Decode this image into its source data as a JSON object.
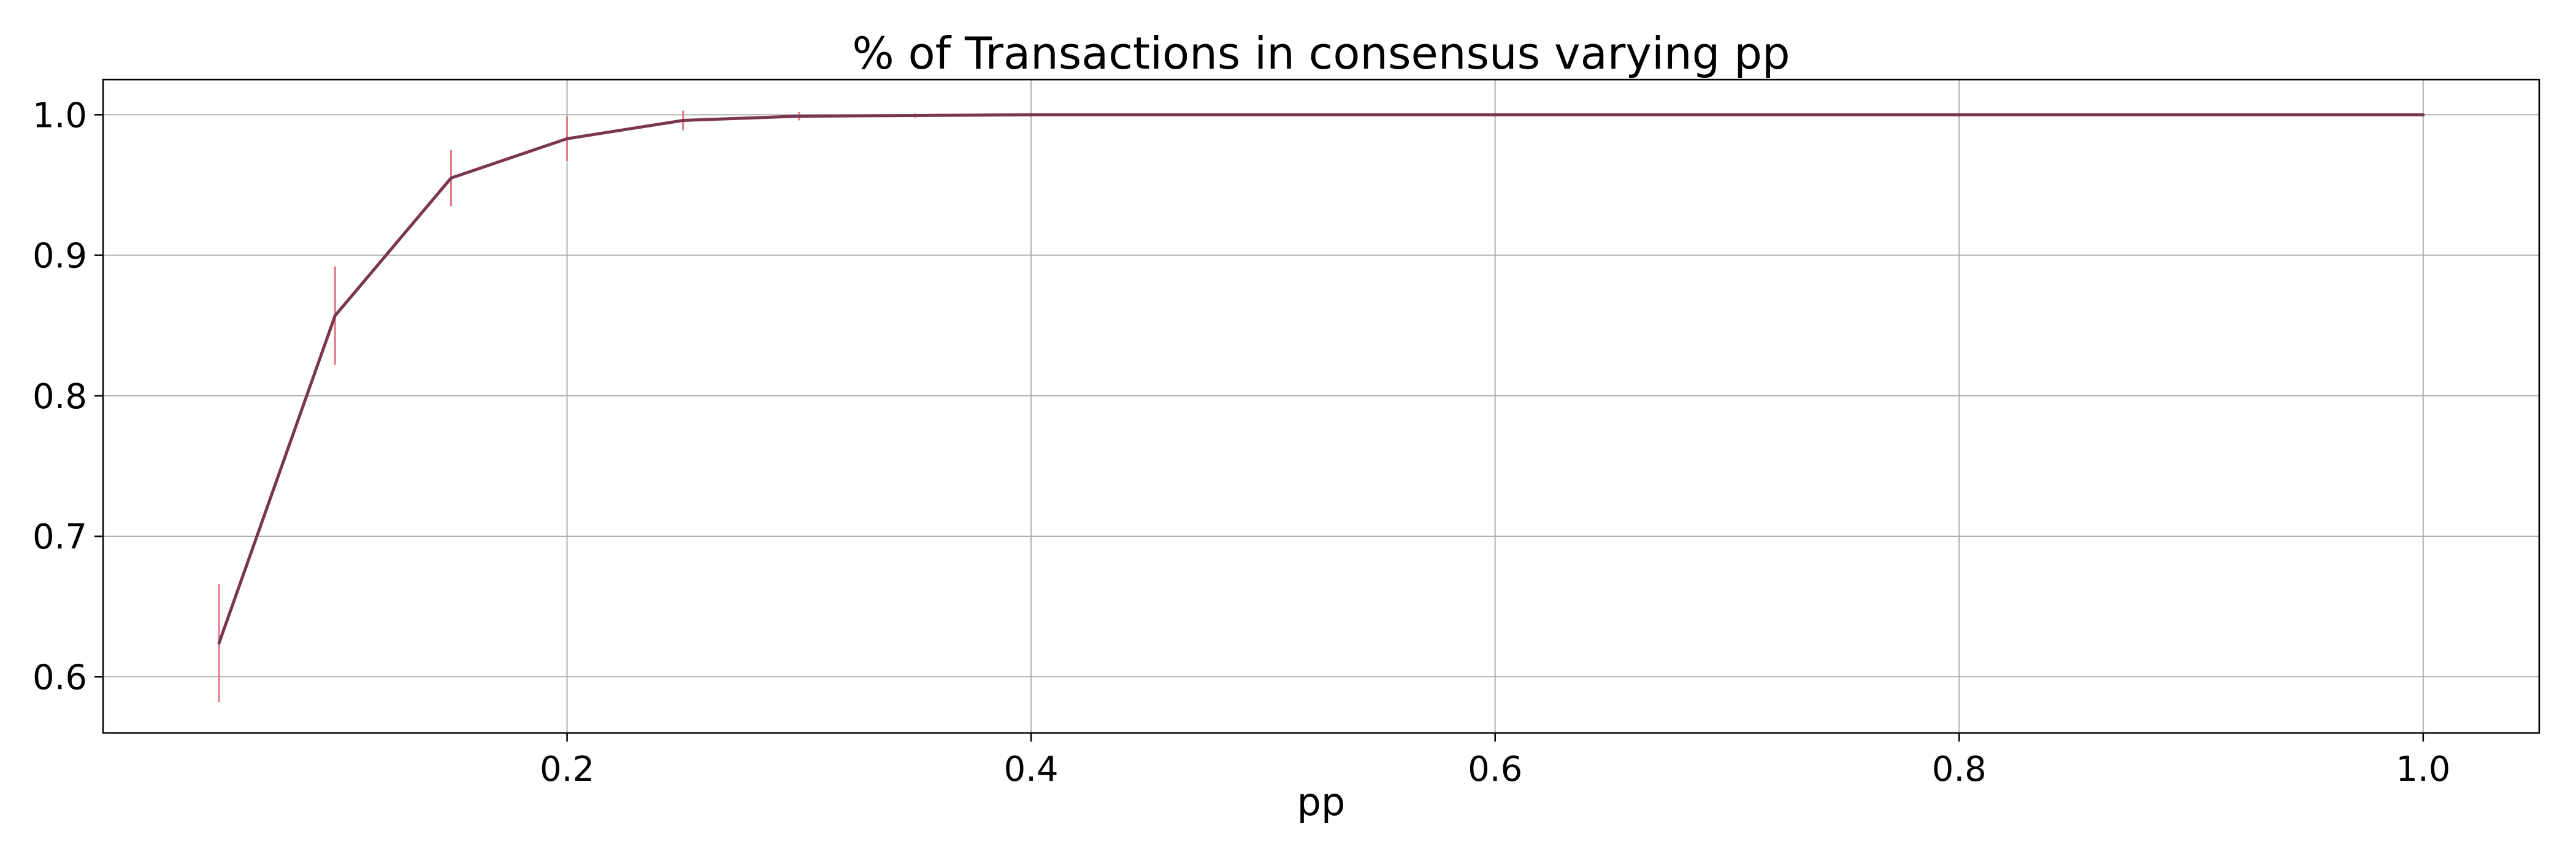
{
  "chart_data": {
    "type": "line",
    "title": "% of Transactions in consensus varying pp",
    "xlabel": "pp",
    "ylabel": "",
    "xlim": [
      0.0,
      1.05
    ],
    "ylim": [
      0.56,
      1.025
    ],
    "xticks": [
      0.2,
      0.4,
      0.6,
      0.8,
      1.0
    ],
    "xtick_labels": [
      "0.2",
      "0.4",
      "0.6",
      "0.8",
      "1.0"
    ],
    "yticks": [
      0.6,
      0.7,
      0.8,
      0.9,
      1.0
    ],
    "ytick_labels": [
      "0.6",
      "0.7",
      "0.8",
      "0.9",
      "1.0"
    ],
    "grid": true,
    "series": [
      {
        "color": "#7a3650",
        "error_color": "#e07a84",
        "x": [
          0.05,
          0.1,
          0.15,
          0.2,
          0.25,
          0.3,
          0.35,
          0.4,
          0.45,
          0.5,
          0.55,
          0.6,
          0.65,
          0.7,
          0.75,
          0.8,
          0.85,
          0.9,
          0.95,
          1.0
        ],
        "y": [
          0.624,
          0.857,
          0.955,
          0.983,
          0.996,
          0.999,
          0.9995,
          1.0,
          1.0,
          1.0,
          1.0,
          1.0,
          1.0,
          1.0,
          1.0,
          1.0,
          1.0,
          1.0,
          1.0,
          1.0
        ],
        "yerr": [
          0.042,
          0.035,
          0.02,
          0.016,
          0.007,
          0.003,
          0.0015,
          0.0,
          0.0,
          0.0,
          0.0,
          0.0,
          0.0,
          0.0,
          0.0,
          0.0,
          0.0,
          0.0,
          0.0,
          0.0
        ]
      }
    ]
  }
}
